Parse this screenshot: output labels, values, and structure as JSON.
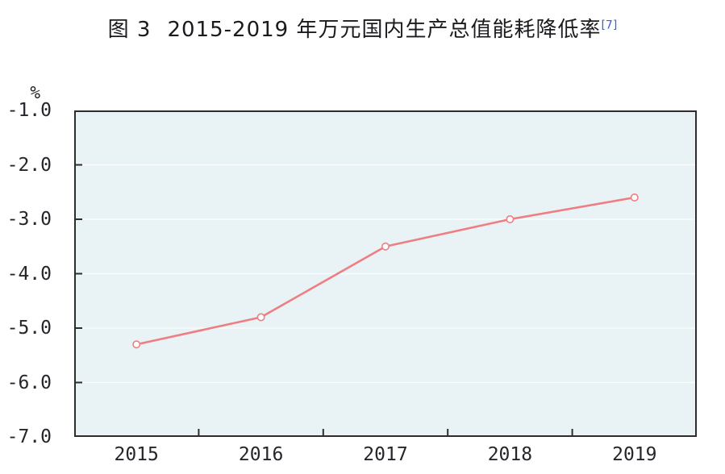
{
  "title": {
    "prefix": "图 3",
    "main": "2015-2019 年万元国内生产总值能耗降低率",
    "footnote": "[7]"
  },
  "chart_data": {
    "type": "line",
    "title": "图 3 2015-2019 年万元国内生产总值能耗降低率 [7]",
    "categories": [
      "2015",
      "2016",
      "2017",
      "2018",
      "2019"
    ],
    "series": [
      {
        "name": "万元国内生产总值能耗降低率",
        "values": [
          -5.3,
          -4.8,
          -3.5,
          -3.0,
          -2.6
        ]
      }
    ],
    "data_labels": [
      "-5.3",
      "-4.8",
      "-3.5",
      "-3.0",
      "-2.6"
    ],
    "ylabel": "%",
    "xlabel": "",
    "ylim": [
      -7.0,
      -1.0
    ],
    "yticks": [
      -1.0,
      -2.0,
      -3.0,
      -4.0,
      -5.0,
      -6.0,
      -7.0
    ],
    "ytick_labels": [
      "-1.0",
      "-2.0",
      "-3.0",
      "-4.0",
      "-5.0",
      "-6.0",
      "-7.0"
    ],
    "grid": true,
    "legend_position": "none",
    "colors": {
      "line": "#ee7e82",
      "marker_fill": "#ffffff",
      "plot_background": "#e9f3f5",
      "gridline": "#fcfefe",
      "axis": "#2d2d2d",
      "text": "#25252b",
      "footnote_link": "#3366cc"
    }
  }
}
